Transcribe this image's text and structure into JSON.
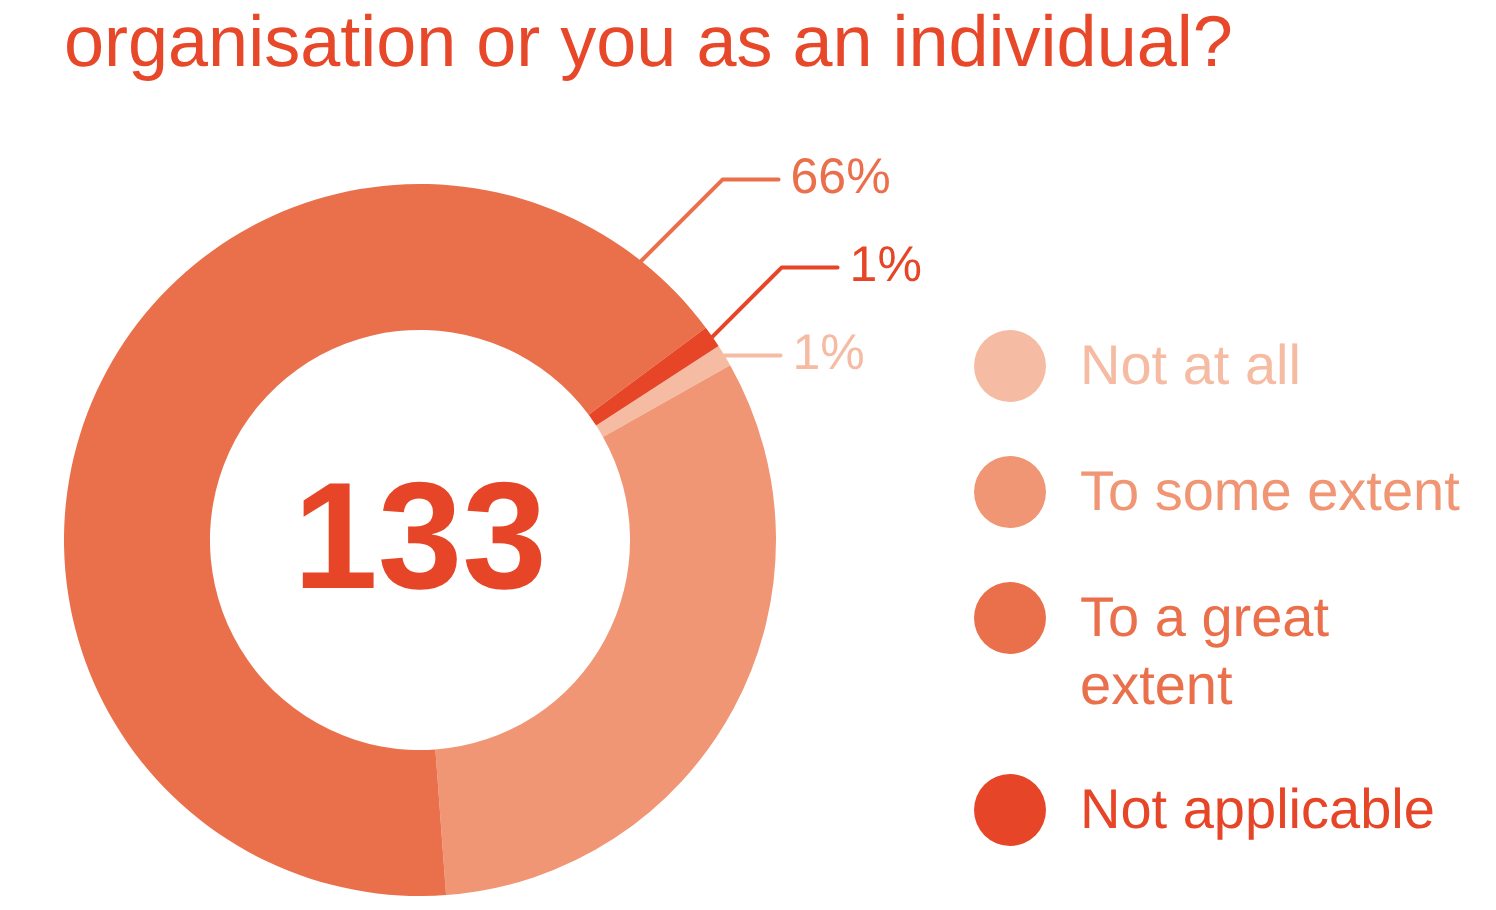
{
  "chart_data": {
    "type": "donut",
    "title": "organisation or you as an individual?",
    "categories": [
      "Not at all",
      "To some extent",
      "To a great extent",
      "Not applicable"
    ],
    "values": [
      1,
      32,
      66,
      1
    ],
    "colors": [
      "#f5bca3",
      "#f09674",
      "#ea704c",
      "#e64627"
    ],
    "value_labels": [
      "1%",
      null,
      "66%",
      "1%"
    ],
    "legend": "right",
    "annotations": [
      "133"
    ]
  }
}
